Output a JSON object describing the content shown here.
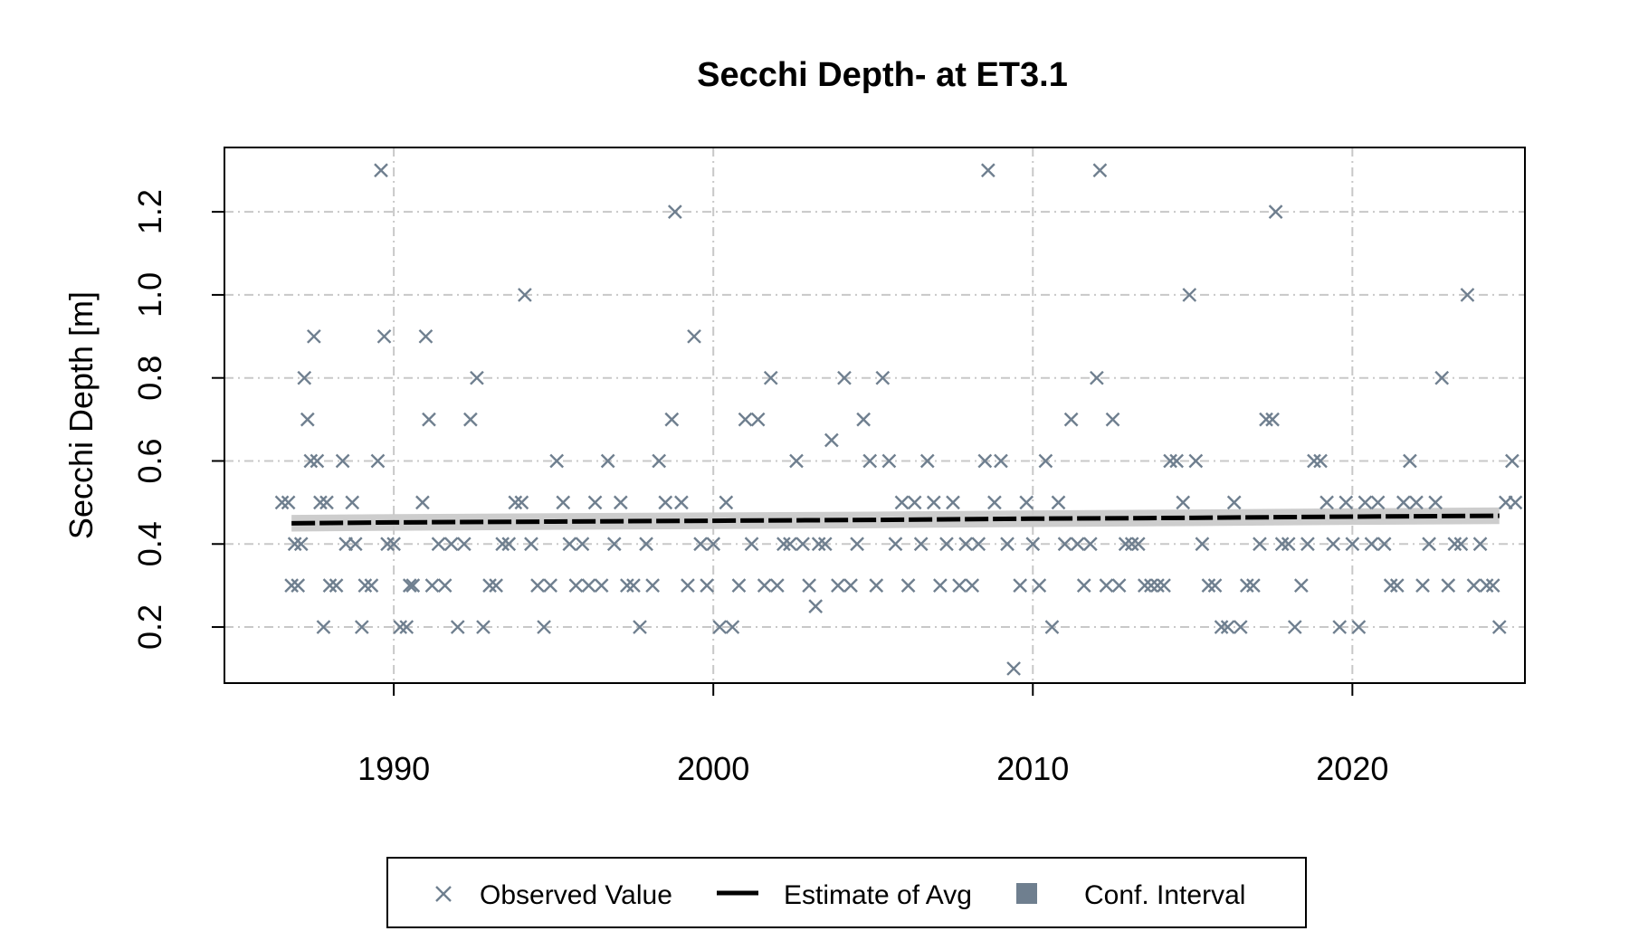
{
  "colors": {
    "observed": "#6f7f8f",
    "estimate": "#000000",
    "ci_band": "#c8c8c8",
    "ci_legend": "#6f7f8f",
    "grid": "#c8c8c8"
  },
  "chart_data": {
    "type": "scatter",
    "title": "Secchi Depth- at ET3.1",
    "xlabel": "",
    "ylabel": "Secchi Depth [m]",
    "xlim": [
      1984.7,
      2025.4
    ],
    "ylim": [
      0.065,
      1.355
    ],
    "x_ticks": [
      1990,
      2000,
      2010,
      2020
    ],
    "x_tick_labels": [
      "1990",
      "2000",
      "2010",
      "2020"
    ],
    "y_ticks": [
      0.2,
      0.4,
      0.6,
      0.8,
      1.0,
      1.2
    ],
    "y_tick_labels": [
      "0.2",
      "0.4",
      "0.6",
      "0.8",
      "1.0",
      "1.2"
    ],
    "grid": true,
    "legend_position": "bottom",
    "legend": [
      "Observed Value",
      "Estimate of Avg",
      "Conf. Interval"
    ],
    "observed": [
      [
        1986.5,
        0.5
      ],
      [
        1986.7,
        0.5
      ],
      [
        1986.9,
        0.4
      ],
      [
        1986.8,
        0.3
      ],
      [
        1987.0,
        0.3
      ],
      [
        1987.1,
        0.4
      ],
      [
        1987.2,
        0.8
      ],
      [
        1987.3,
        0.7
      ],
      [
        1987.4,
        0.6
      ],
      [
        1987.5,
        0.9
      ],
      [
        1987.6,
        0.6
      ],
      [
        1987.7,
        0.5
      ],
      [
        1987.8,
        0.2
      ],
      [
        1987.9,
        0.5
      ],
      [
        1988.0,
        0.3
      ],
      [
        1988.2,
        0.3
      ],
      [
        1988.4,
        0.6
      ],
      [
        1988.5,
        0.4
      ],
      [
        1988.7,
        0.5
      ],
      [
        1988.8,
        0.4
      ],
      [
        1989.0,
        0.2
      ],
      [
        1989.1,
        0.3
      ],
      [
        1989.3,
        0.3
      ],
      [
        1989.5,
        0.6
      ],
      [
        1989.6,
        1.3
      ],
      [
        1989.7,
        0.9
      ],
      [
        1989.8,
        0.4
      ],
      [
        1990.0,
        0.4
      ],
      [
        1990.2,
        0.2
      ],
      [
        1990.4,
        0.2
      ],
      [
        1990.5,
        0.3
      ],
      [
        1990.6,
        0.3
      ],
      [
        1990.9,
        0.5
      ],
      [
        1991.0,
        0.9
      ],
      [
        1991.1,
        0.7
      ],
      [
        1991.2,
        0.3
      ],
      [
        1991.4,
        0.4
      ],
      [
        1991.6,
        0.3
      ],
      [
        1991.8,
        0.4
      ],
      [
        1992.0,
        0.2
      ],
      [
        1992.2,
        0.4
      ],
      [
        1992.4,
        0.7
      ],
      [
        1992.6,
        0.8
      ],
      [
        1992.8,
        0.2
      ],
      [
        1993.0,
        0.3
      ],
      [
        1993.2,
        0.3
      ],
      [
        1993.4,
        0.4
      ],
      [
        1993.6,
        0.4
      ],
      [
        1993.8,
        0.5
      ],
      [
        1994.0,
        0.5
      ],
      [
        1994.1,
        1.0
      ],
      [
        1994.3,
        0.4
      ],
      [
        1994.5,
        0.3
      ],
      [
        1994.7,
        0.2
      ],
      [
        1994.9,
        0.3
      ],
      [
        1995.1,
        0.6
      ],
      [
        1995.3,
        0.5
      ],
      [
        1995.5,
        0.4
      ],
      [
        1995.7,
        0.3
      ],
      [
        1995.9,
        0.4
      ],
      [
        1996.1,
        0.3
      ],
      [
        1996.3,
        0.5
      ],
      [
        1996.5,
        0.3
      ],
      [
        1996.7,
        0.6
      ],
      [
        1996.9,
        0.4
      ],
      [
        1997.1,
        0.5
      ],
      [
        1997.3,
        0.3
      ],
      [
        1997.5,
        0.3
      ],
      [
        1997.7,
        0.2
      ],
      [
        1997.9,
        0.4
      ],
      [
        1998.1,
        0.3
      ],
      [
        1998.3,
        0.6
      ],
      [
        1998.5,
        0.5
      ],
      [
        1998.7,
        0.7
      ],
      [
        1998.8,
        1.2
      ],
      [
        1999.0,
        0.5
      ],
      [
        1999.2,
        0.3
      ],
      [
        1999.4,
        0.9
      ],
      [
        1999.6,
        0.4
      ],
      [
        1999.8,
        0.3
      ],
      [
        2000.0,
        0.4
      ],
      [
        2000.2,
        0.2
      ],
      [
        2000.4,
        0.5
      ],
      [
        2000.6,
        0.2
      ],
      [
        2000.8,
        0.3
      ],
      [
        2001.0,
        0.7
      ],
      [
        2001.2,
        0.4
      ],
      [
        2001.4,
        0.7
      ],
      [
        2001.6,
        0.3
      ],
      [
        2001.8,
        0.8
      ],
      [
        2002.0,
        0.3
      ],
      [
        2002.2,
        0.4
      ],
      [
        2002.4,
        0.4
      ],
      [
        2002.6,
        0.6
      ],
      [
        2002.8,
        0.4
      ],
      [
        2003.0,
        0.3
      ],
      [
        2003.2,
        0.25
      ],
      [
        2003.3,
        0.4
      ],
      [
        2003.5,
        0.4
      ],
      [
        2003.7,
        0.65
      ],
      [
        2003.9,
        0.3
      ],
      [
        2004.1,
        0.8
      ],
      [
        2004.3,
        0.3
      ],
      [
        2004.5,
        0.4
      ],
      [
        2004.7,
        0.7
      ],
      [
        2004.9,
        0.6
      ],
      [
        2005.1,
        0.3
      ],
      [
        2005.3,
        0.8
      ],
      [
        2005.5,
        0.6
      ],
      [
        2005.7,
        0.4
      ],
      [
        2005.9,
        0.5
      ],
      [
        2006.1,
        0.3
      ],
      [
        2006.3,
        0.5
      ],
      [
        2006.5,
        0.4
      ],
      [
        2006.7,
        0.6
      ],
      [
        2006.9,
        0.5
      ],
      [
        2007.1,
        0.3
      ],
      [
        2007.3,
        0.4
      ],
      [
        2007.5,
        0.5
      ],
      [
        2007.7,
        0.3
      ],
      [
        2007.9,
        0.4
      ],
      [
        2008.1,
        0.3
      ],
      [
        2008.3,
        0.4
      ],
      [
        2008.5,
        0.6
      ],
      [
        2008.6,
        1.3
      ],
      [
        2008.8,
        0.5
      ],
      [
        2009.0,
        0.6
      ],
      [
        2009.2,
        0.4
      ],
      [
        2009.4,
        0.1
      ],
      [
        2009.6,
        0.3
      ],
      [
        2009.8,
        0.5
      ],
      [
        2010.0,
        0.4
      ],
      [
        2010.2,
        0.3
      ],
      [
        2010.4,
        0.6
      ],
      [
        2010.6,
        0.2
      ],
      [
        2010.8,
        0.5
      ],
      [
        2011.0,
        0.4
      ],
      [
        2011.2,
        0.7
      ],
      [
        2011.4,
        0.4
      ],
      [
        2011.6,
        0.3
      ],
      [
        2011.8,
        0.4
      ],
      [
        2012.0,
        0.8
      ],
      [
        2012.1,
        1.3
      ],
      [
        2012.3,
        0.3
      ],
      [
        2012.5,
        0.7
      ],
      [
        2012.7,
        0.3
      ],
      [
        2012.9,
        0.4
      ],
      [
        2013.1,
        0.4
      ],
      [
        2013.3,
        0.4
      ],
      [
        2013.5,
        0.3
      ],
      [
        2013.7,
        0.3
      ],
      [
        2013.9,
        0.3
      ],
      [
        2014.1,
        0.3
      ],
      [
        2014.3,
        0.6
      ],
      [
        2014.5,
        0.6
      ],
      [
        2014.7,
        0.5
      ],
      [
        2014.9,
        1.0
      ],
      [
        2015.1,
        0.6
      ],
      [
        2015.3,
        0.4
      ],
      [
        2015.5,
        0.3
      ],
      [
        2015.7,
        0.3
      ],
      [
        2015.9,
        0.2
      ],
      [
        2016.1,
        0.2
      ],
      [
        2016.3,
        0.5
      ],
      [
        2016.5,
        0.2
      ],
      [
        2016.7,
        0.3
      ],
      [
        2016.9,
        0.3
      ],
      [
        2017.1,
        0.4
      ],
      [
        2017.3,
        0.7
      ],
      [
        2017.5,
        0.7
      ],
      [
        2017.6,
        1.2
      ],
      [
        2017.8,
        0.4
      ],
      [
        2018.0,
        0.4
      ],
      [
        2018.2,
        0.2
      ],
      [
        2018.4,
        0.3
      ],
      [
        2018.6,
        0.4
      ],
      [
        2018.8,
        0.6
      ],
      [
        2019.0,
        0.6
      ],
      [
        2019.2,
        0.5
      ],
      [
        2019.4,
        0.4
      ],
      [
        2019.6,
        0.2
      ],
      [
        2019.8,
        0.5
      ],
      [
        2020.0,
        0.4
      ],
      [
        2020.2,
        0.2
      ],
      [
        2020.4,
        0.5
      ],
      [
        2020.6,
        0.4
      ],
      [
        2020.8,
        0.5
      ],
      [
        2021.0,
        0.4
      ],
      [
        2021.2,
        0.3
      ],
      [
        2021.4,
        0.3
      ],
      [
        2021.6,
        0.5
      ],
      [
        2021.8,
        0.6
      ],
      [
        2022.0,
        0.5
      ],
      [
        2022.2,
        0.3
      ],
      [
        2022.4,
        0.4
      ],
      [
        2022.6,
        0.5
      ],
      [
        2022.8,
        0.8
      ],
      [
        2023.0,
        0.3
      ],
      [
        2023.2,
        0.4
      ],
      [
        2023.4,
        0.4
      ],
      [
        2023.6,
        1.0
      ],
      [
        2023.8,
        0.3
      ],
      [
        2024.0,
        0.4
      ],
      [
        2024.2,
        0.3
      ],
      [
        2024.4,
        0.3
      ],
      [
        2024.6,
        0.2
      ],
      [
        2024.8,
        0.5
      ],
      [
        2025.0,
        0.6
      ],
      [
        2025.1,
        0.5
      ]
    ],
    "estimate": {
      "x": [
        1986.8,
        1990,
        1995,
        2000,
        2005,
        2010,
        2015,
        2020,
        2024.6
      ],
      "y": [
        0.45,
        0.452,
        0.454,
        0.456,
        0.458,
        0.461,
        0.463,
        0.466,
        0.468
      ]
    },
    "ci_half_width": 0.02
  }
}
